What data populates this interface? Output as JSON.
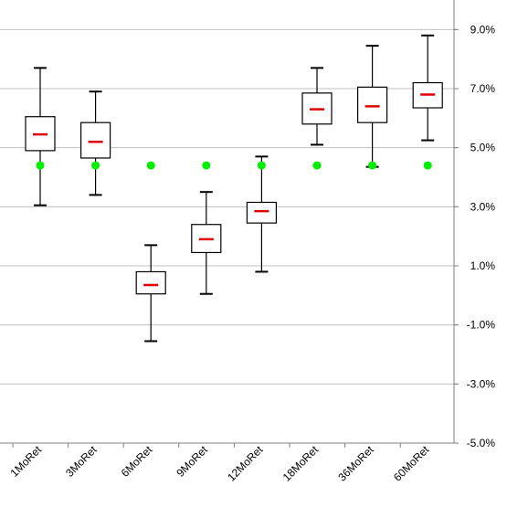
{
  "chart_data": {
    "type": "boxplot",
    "categories": [
      "1MoRet",
      "3MoRet",
      "6MoRet",
      "9MoRet",
      "12MoRet",
      "18MoRet",
      "36MoRet",
      "60MoRet"
    ],
    "ylim": [
      -5.0,
      10.0
    ],
    "y_ticks": [
      9.0,
      7.0,
      5.0,
      3.0,
      1.0,
      -1.0,
      -3.0,
      -5.0
    ],
    "y_tick_labels": [
      "9.0%",
      "7.0%",
      "5.0%",
      "3.0%",
      "1.0%",
      "-1.0%",
      "-3.0%",
      "-5.0%"
    ],
    "y_axis_position": "right",
    "grid": true,
    "boxes": [
      {
        "whisker_low": 3.05,
        "q1": 4.9,
        "median": 5.45,
        "q3": 6.05,
        "whisker_high": 7.7
      },
      {
        "whisker_low": 3.4,
        "q1": 4.65,
        "median": 5.2,
        "q3": 5.85,
        "whisker_high": 6.9
      },
      {
        "whisker_low": -1.55,
        "q1": 0.05,
        "median": 0.35,
        "q3": 0.8,
        "whisker_high": 1.7
      },
      {
        "whisker_low": 0.05,
        "q1": 1.45,
        "median": 1.9,
        "q3": 2.4,
        "whisker_high": 3.5
      },
      {
        "whisker_low": 0.8,
        "q1": 2.45,
        "median": 2.85,
        "q3": 3.15,
        "whisker_high": 4.7
      },
      {
        "whisker_low": 5.1,
        "q1": 5.8,
        "median": 6.3,
        "q3": 6.85,
        "whisker_high": 7.7
      },
      {
        "whisker_low": 4.35,
        "q1": 5.85,
        "median": 6.4,
        "q3": 7.05,
        "whisker_high": 8.45
      },
      {
        "whisker_low": 5.25,
        "q1": 6.35,
        "median": 6.8,
        "q3": 7.2,
        "whisker_high": 8.8
      }
    ],
    "markers": [
      4.4,
      4.4,
      4.4,
      4.4,
      4.4,
      4.4,
      4.4,
      4.4
    ],
    "colors": {
      "box_stroke": "#000000",
      "median": "#dd0000",
      "marker": "#00ee00",
      "grid": "#c0c0c0",
      "axis": "#808080"
    }
  }
}
